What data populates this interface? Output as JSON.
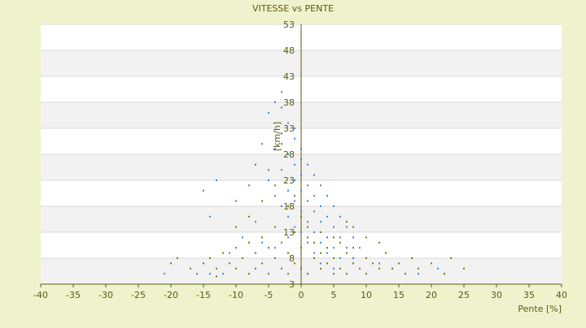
{
  "chart_data": {
    "type": "scatter",
    "title": "VITESSE vs PENTE",
    "x_label": "Pente [%]",
    "y_label": "[km/h]",
    "xlim": [
      -40,
      40
    ],
    "xticks": [
      -40,
      -35,
      -30,
      -25,
      -20,
      -15,
      -10,
      -5,
      0,
      5,
      10,
      15,
      20,
      25,
      30,
      35,
      40
    ],
    "ylim": [
      3,
      53
    ],
    "yticks": [
      3,
      8,
      13,
      18,
      23,
      28,
      33,
      38,
      43,
      48,
      53
    ],
    "grid": true,
    "series": [
      {
        "color": "#3b87d6",
        "x": [
          -4,
          -3,
          -5,
          -2,
          -3,
          -1,
          -6,
          -4,
          -2,
          0,
          -1,
          1,
          -3,
          0,
          2,
          -5,
          -1,
          1,
          3,
          -2,
          0,
          2,
          4,
          -4,
          -1,
          1,
          3,
          5,
          -3,
          0,
          2,
          4,
          6,
          -2,
          1,
          3,
          5,
          7,
          -1,
          0,
          2,
          4,
          6,
          8,
          1,
          3,
          5,
          7,
          9,
          2,
          4,
          6,
          8,
          10,
          12,
          3,
          5,
          14,
          -15,
          -13,
          -14,
          -10,
          -8,
          -7,
          -9,
          -11,
          -6,
          -12,
          -16,
          -14,
          -21,
          1,
          18,
          22,
          21,
          -3,
          -1,
          0,
          -2,
          -4
        ],
        "y": [
          38,
          37,
          36,
          34,
          32,
          31,
          30,
          29,
          28,
          27,
          26,
          26,
          25,
          24,
          24,
          23,
          23,
          22,
          22,
          21,
          21,
          20,
          20,
          20,
          19,
          19,
          18,
          18,
          18,
          17,
          17,
          16,
          16,
          16,
          15,
          15,
          14,
          14,
          14,
          13,
          13,
          12,
          12,
          12,
          11,
          11,
          10,
          10,
          10,
          9,
          9,
          8,
          8,
          8,
          7,
          7,
          6,
          6,
          21,
          23,
          16,
          19,
          22,
          15,
          12,
          9,
          11,
          5,
          5,
          5,
          5,
          5,
          5,
          5,
          6,
          40,
          33,
          29,
          12,
          10
        ]
      },
      {
        "color": "#6e7d05",
        "x": [
          -20,
          -19,
          -17,
          -15,
          -14,
          -13,
          -12,
          -11,
          -10,
          -10,
          -9,
          -8,
          -8,
          -7,
          -7,
          -6,
          -6,
          -5,
          -5,
          -4,
          -4,
          -3,
          -3,
          -2,
          -2,
          -1,
          -1,
          0,
          0,
          1,
          1,
          2,
          2,
          3,
          3,
          4,
          4,
          5,
          5,
          6,
          6,
          7,
          7,
          8,
          8,
          9,
          10,
          10,
          11,
          12,
          13,
          14,
          15,
          16,
          17,
          18,
          20,
          22,
          23,
          25,
          -5,
          -3,
          -4,
          -6,
          -2,
          -1,
          0,
          1,
          3,
          5,
          8,
          10,
          -8,
          -10,
          -13,
          7,
          -7,
          12
        ],
        "y": [
          7,
          8,
          6,
          7,
          8,
          6,
          9,
          7,
          10,
          6,
          8,
          11,
          5,
          9,
          6,
          12,
          7,
          10,
          5,
          14,
          8,
          11,
          6,
          9,
          5,
          13,
          7,
          10,
          6,
          12,
          5,
          8,
          11,
          6,
          9,
          7,
          10,
          5,
          8,
          11,
          6,
          9,
          5,
          7,
          10,
          6,
          8,
          5,
          7,
          6,
          9,
          6,
          7,
          5,
          8,
          6,
          7,
          5,
          8,
          6,
          25,
          30,
          22,
          19,
          18,
          20,
          16,
          14,
          13,
          12,
          14,
          12,
          16,
          14,
          4.5,
          15,
          26,
          11
        ]
      }
    ]
  }
}
